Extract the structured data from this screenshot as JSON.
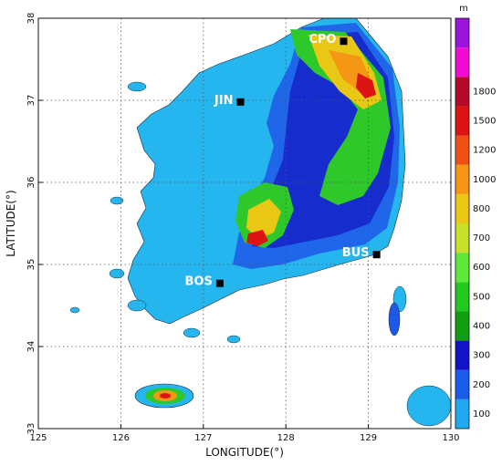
{
  "map": {
    "xlabel": "LONGITUDE(°)",
    "ylabel": "LATITUDE(°)",
    "lon_range": [
      125,
      130
    ],
    "lat_range": [
      33,
      38
    ],
    "lon_ticks": [
      "125",
      "126",
      "127",
      "128",
      "129",
      "130"
    ],
    "lat_ticks": [
      "33",
      "34",
      "35",
      "36",
      "37",
      "38"
    ],
    "grid": "dotted",
    "stations": [
      {
        "id": "JIN",
        "label": "JIN",
        "lon": 127.45,
        "lat": 36.98
      },
      {
        "id": "CPO",
        "label": "CPO",
        "lon": 128.7,
        "lat": 37.72
      },
      {
        "id": "BUS",
        "label": "BUS",
        "lon": 129.1,
        "lat": 35.12
      },
      {
        "id": "BOS",
        "label": "BOS",
        "lon": 127.2,
        "lat": 34.77
      }
    ]
  },
  "colorbar": {
    "unit": "m",
    "levels": [
      "100",
      "200",
      "300",
      "400",
      "500",
      "600",
      "700",
      "800",
      "1000",
      "1200",
      "1500",
      "1800"
    ],
    "colors": [
      "#1ea9f0",
      "#1a5bea",
      "#1212c8",
      "#109e10",
      "#22c81e",
      "#5ee83c",
      "#c8e02a",
      "#e8c814",
      "#f59614",
      "#f05014",
      "#dc1414",
      "#b40a28",
      "#f00ad2",
      "#9a14dc"
    ]
  }
}
